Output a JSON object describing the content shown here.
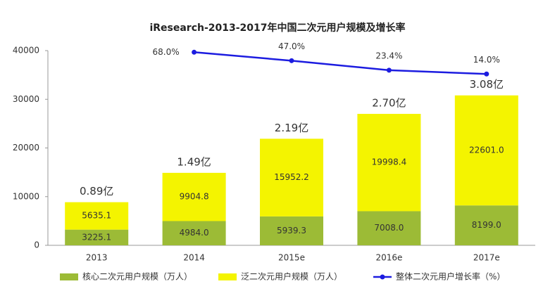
{
  "chart_data": {
    "type": "bar",
    "title": "iResearch-2013-2017年中国二次元用户规模及增长率",
    "categories": [
      "2013",
      "2014",
      "2015e",
      "2016e",
      "2017e"
    ],
    "stacked": true,
    "series": [
      {
        "name": "核心二次元用户规模（万人）",
        "color": "#9cbb36",
        "type": "bar",
        "values": [
          3225.1,
          4984.0,
          5939.3,
          7008.0,
          8199.0
        ],
        "value_labels": [
          "3225.1",
          "4984.0",
          "5939.3",
          "7008.0",
          "8199.0"
        ]
      },
      {
        "name": "泛二次元用户规模（万人）",
        "color": "#f4f400",
        "type": "bar",
        "values": [
          5635.1,
          9904.8,
          15952.2,
          19998.4,
          22601.0
        ],
        "value_labels": [
          "5635.1",
          "9904.8",
          "15952.2",
          "19998.4",
          "22601.0"
        ]
      },
      {
        "name": "整体二次元用户增长率（%）",
        "color": "#1c1ce0",
        "type": "line",
        "axis": "y2",
        "values": [
          null,
          68.0,
          47.0,
          23.4,
          14.0
        ],
        "value_labels": [
          null,
          "68.0%",
          "47.0%",
          "23.4%",
          "14.0%"
        ]
      }
    ],
    "annotations": [
      "0.89亿",
      "1.49亿",
      "2.19亿",
      "2.70亿",
      "3.08亿"
    ],
    "ylim": [
      0,
      40000
    ],
    "yticks": [
      0,
      10000,
      20000,
      30000,
      40000
    ],
    "y2lim": [
      -411,
      72
    ],
    "legend": "bottom"
  }
}
